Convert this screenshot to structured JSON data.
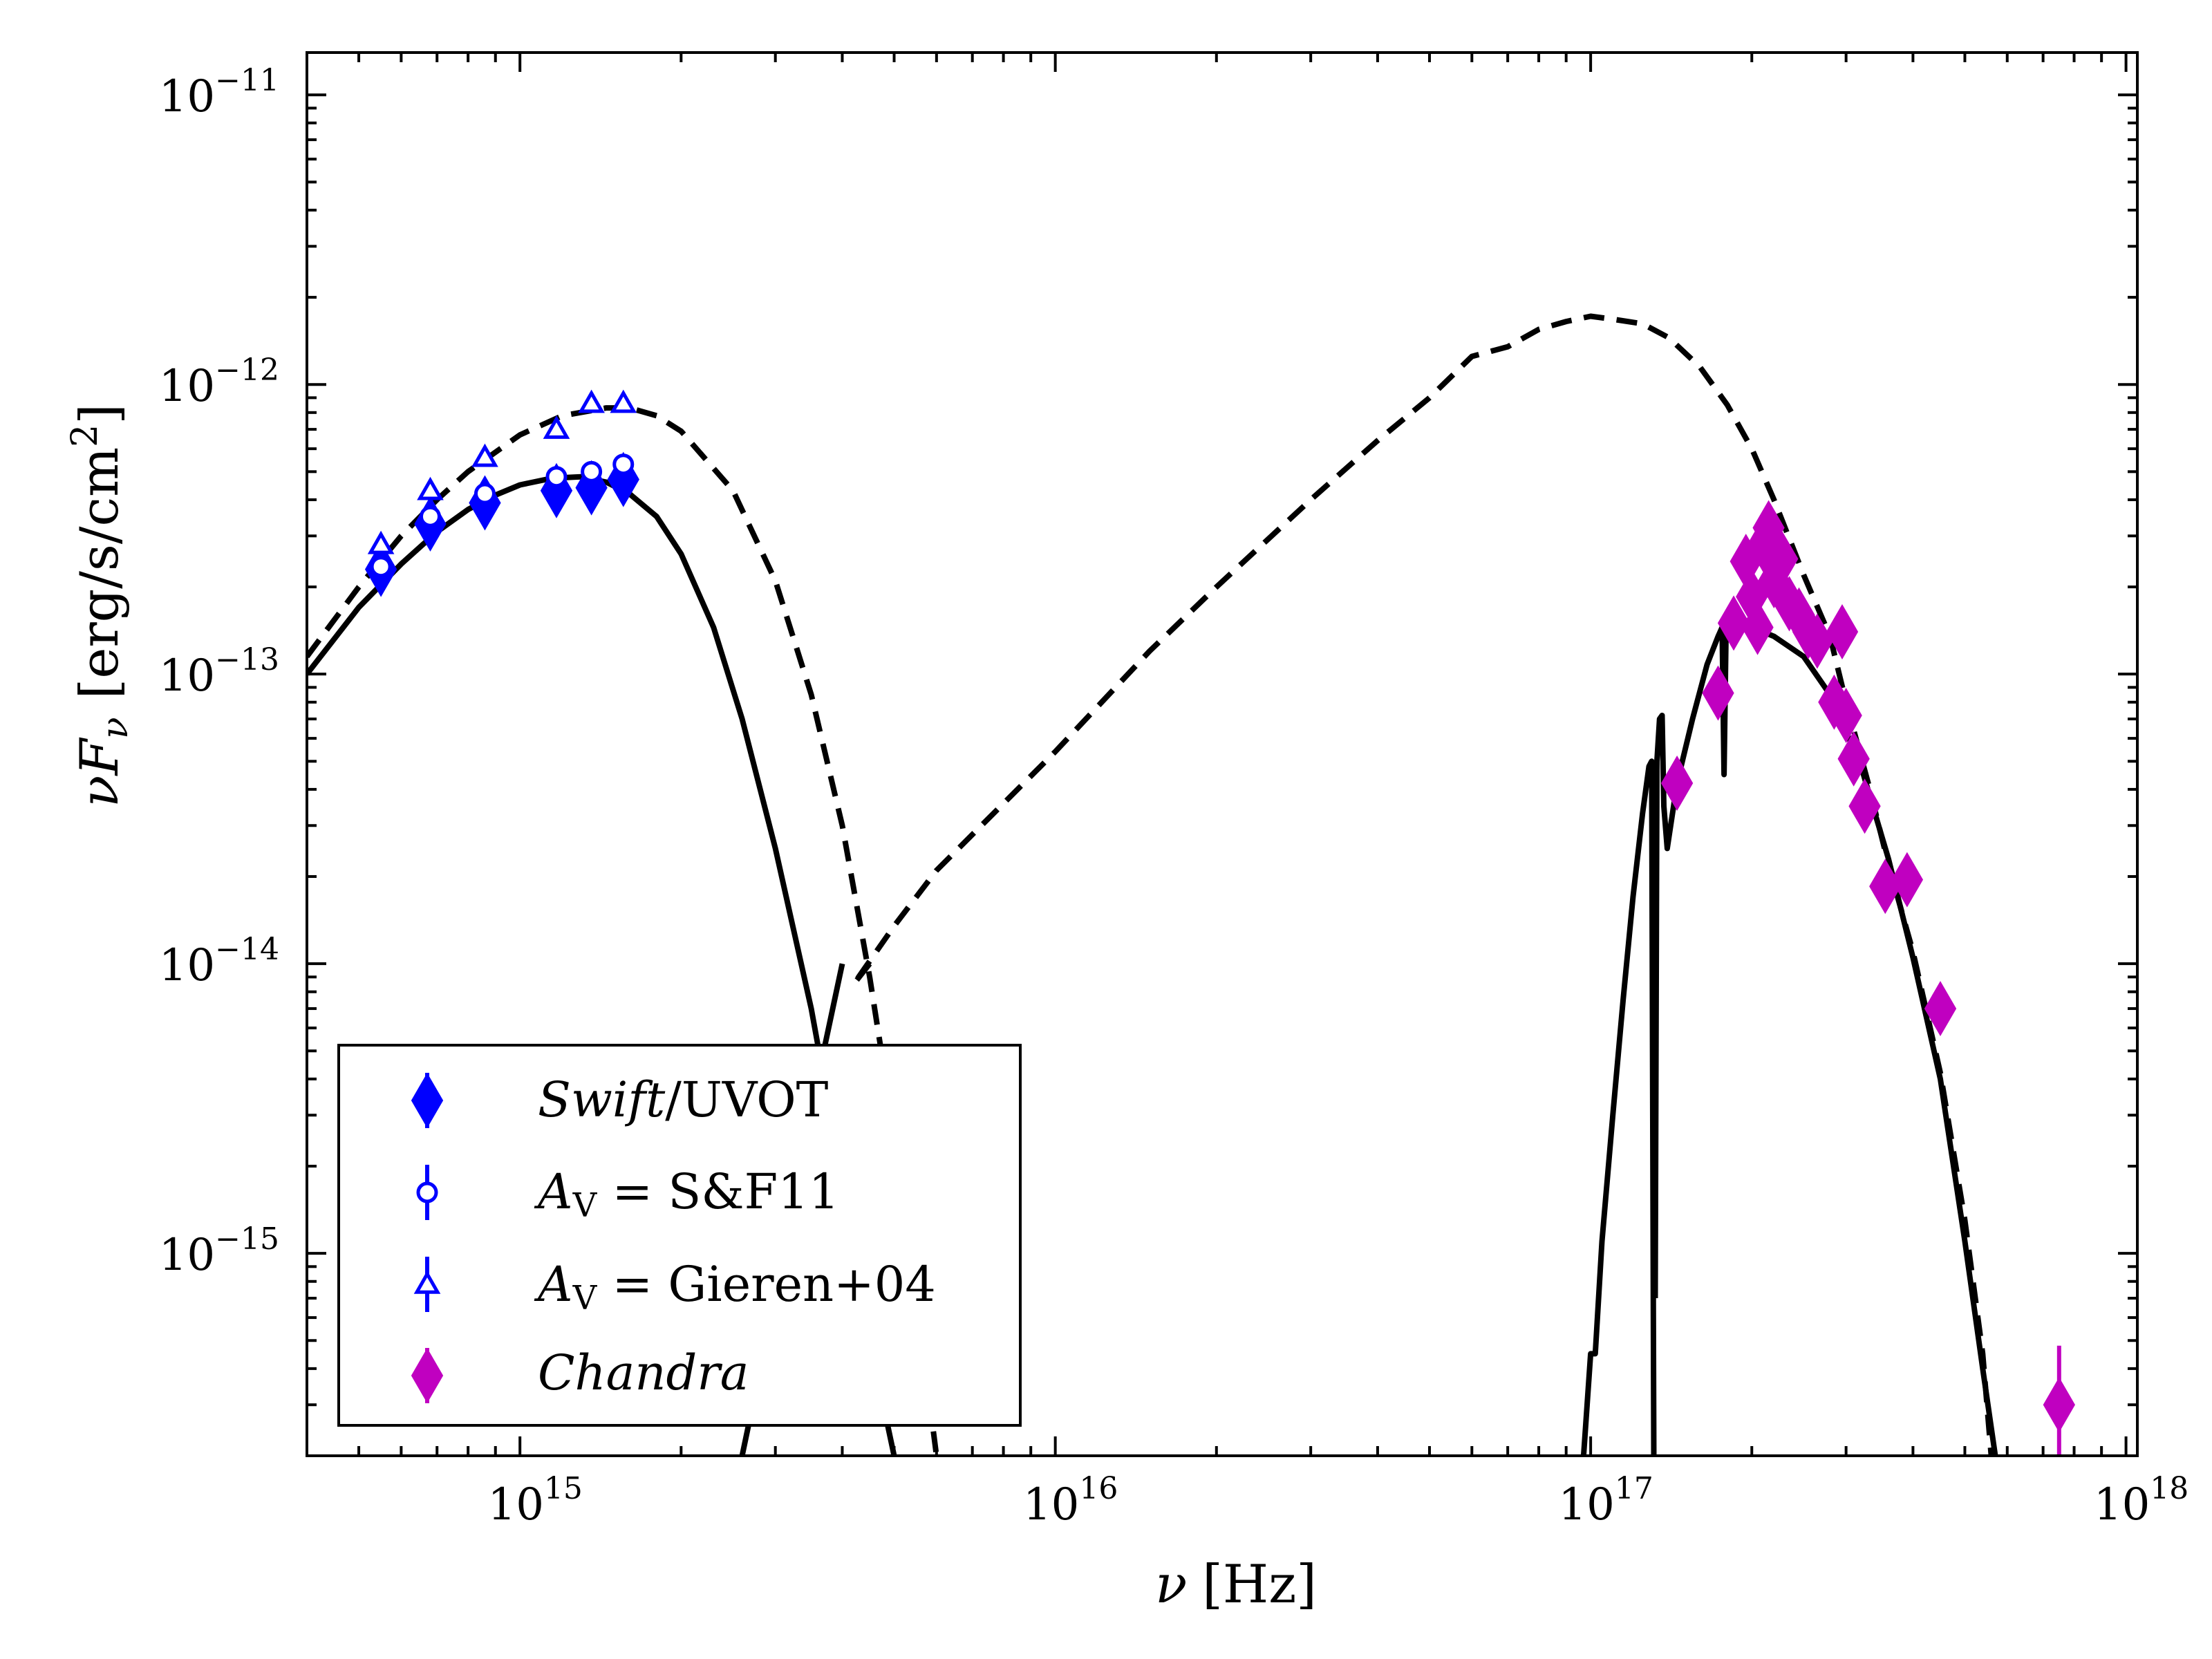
{
  "chart_data": {
    "type": "scatter",
    "title": "",
    "xscale": "log",
    "yscale": "log",
    "xlim": [
      400000000000000.0,
      1.05e+18
    ],
    "ylim": [
      2e-16,
      1.4e-11
    ],
    "xlabel_sym": "ν",
    "xlabel_unit": "[Hz]",
    "ylabel_sym": "νF",
    "ylabel_sub": "ν",
    "ylabel_unit": "[erg/s/cm",
    "ylabel_unit_sup": "2",
    "ylabel_unit_end": "]",
    "x_ticks": [
      {
        "value": 1000000000000000.0,
        "base": "10",
        "exp": "15"
      },
      {
        "value": 1e+16,
        "base": "10",
        "exp": "16"
      },
      {
        "value": 1e+17,
        "base": "10",
        "exp": "17"
      },
      {
        "value": 1e+18,
        "base": "10",
        "exp": "18"
      }
    ],
    "y_ticks": [
      {
        "value": 1e-15,
        "base": "10",
        "exp": "−15"
      },
      {
        "value": 1e-14,
        "base": "10",
        "exp": "−14"
      },
      {
        "value": 1e-13,
        "base": "10",
        "exp": "−13"
      },
      {
        "value": 1e-12,
        "base": "10",
        "exp": "−12"
      },
      {
        "value": 1e-11,
        "base": "10",
        "exp": "−11"
      }
    ],
    "legend": {
      "placement": "lower-left",
      "entries": [
        {
          "id": "swift",
          "italic": "Swift",
          "text": "/UVOT",
          "sub": "",
          "marker": "diamond",
          "color": "#0000ff",
          "filled": true
        },
        {
          "id": "sf11",
          "italic": "A",
          "sub": "V",
          "text": " = S&F11",
          "marker": "circle",
          "color": "#0000ff",
          "filled": false
        },
        {
          "id": "gieren",
          "italic": "A",
          "sub": "V",
          "text": " = Gieren+04",
          "marker": "triangle",
          "color": "#0000ff",
          "filled": false
        },
        {
          "id": "chandra",
          "italic": "Chandra",
          "text": "",
          "sub": "",
          "marker": "diamond",
          "color": "#c000c0",
          "filled": true
        }
      ]
    },
    "series": [
      {
        "name": "Swift/UVOT",
        "color": "#0000ff",
        "marker": "diamond",
        "points": [
          {
            "x": 550000000000000.0,
            "y": 2.3e-13
          },
          {
            "x": 680000000000000.0,
            "y": 3.3e-13
          },
          {
            "x": 860000000000000.0,
            "y": 3.9e-13
          },
          {
            "x": 1170000000000000.0,
            "y": 4.3e-13
          },
          {
            "x": 1360000000000000.0,
            "y": 4.4e-13
          },
          {
            "x": 1560000000000000.0,
            "y": 4.7e-13
          }
        ]
      },
      {
        "name": "A_V = S&F11",
        "color": "#0000ff",
        "marker": "circle",
        "points": [
          {
            "x": 550000000000000.0,
            "y": 2.35e-13
          },
          {
            "x": 680000000000000.0,
            "y": 3.5e-13
          },
          {
            "x": 860000000000000.0,
            "y": 4.2e-13
          },
          {
            "x": 1170000000000000.0,
            "y": 4.8e-13
          },
          {
            "x": 1360000000000000.0,
            "y": 5e-13
          },
          {
            "x": 1560000000000000.0,
            "y": 5.3e-13
          }
        ]
      },
      {
        "name": "A_V = Gieren+04",
        "color": "#0000ff",
        "marker": "triangle",
        "points": [
          {
            "x": 550000000000000.0,
            "y": 2.8e-13
          },
          {
            "x": 680000000000000.0,
            "y": 4.3e-13
          },
          {
            "x": 860000000000000.0,
            "y": 5.6e-13
          },
          {
            "x": 1170000000000000.0,
            "y": 7e-13
          },
          {
            "x": 1360000000000000.0,
            "y": 8.6e-13
          },
          {
            "x": 1560000000000000.0,
            "y": 8.6e-13
          }
        ]
      },
      {
        "name": "Chandra",
        "color": "#c000c0",
        "marker": "diamond",
        "points": [
          {
            "x": 1.45e+17,
            "y": 4.2e-14,
            "ylo": 3.8e-14,
            "yhi": 4.6e-14
          },
          {
            "x": 1.73e+17,
            "y": 8.6e-14,
            "ylo": 7.8e-14,
            "yhi": 9.6e-14
          },
          {
            "x": 1.85e+17,
            "y": 1.5e-13,
            "ylo": 1.35e-13,
            "yhi": 1.65e-13
          },
          {
            "x": 1.95e+17,
            "y": 2.45e-13,
            "ylo": 2.2e-13,
            "yhi": 2.7e-13
          },
          {
            "x": 2e+17,
            "y": 1.85e-13,
            "ylo": 1.65e-13,
            "yhi": 2.05e-13
          },
          {
            "x": 2.05e+17,
            "y": 1.45e-13,
            "ylo": 1.3e-13,
            "yhi": 1.6e-13
          },
          {
            "x": 2.1e+17,
            "y": 2.8e-13,
            "ylo": 2.55e-13,
            "yhi": 3.05e-13
          },
          {
            "x": 2.15e+17,
            "y": 3.2e-13,
            "ylo": 2.9e-13,
            "yhi": 3.5e-13
          },
          {
            "x": 2.2e+17,
            "y": 2.1e-13,
            "ylo": 1.9e-13,
            "yhi": 2.3e-13
          },
          {
            "x": 2.28e+17,
            "y": 2.5e-13,
            "ylo": 2.25e-13,
            "yhi": 2.75e-13
          },
          {
            "x": 2.35e+17,
            "y": 1.75e-13,
            "ylo": 1.55e-13,
            "yhi": 1.95e-13
          },
          {
            "x": 2.45e+17,
            "y": 1.6e-13,
            "ylo": 1.45e-13,
            "yhi": 1.75e-13
          },
          {
            "x": 2.55e+17,
            "y": 1.4e-13,
            "ylo": 1.25e-13,
            "yhi": 1.55e-13
          },
          {
            "x": 2.65e+17,
            "y": 1.3e-13,
            "ylo": 1.15e-13,
            "yhi": 1.45e-13
          },
          {
            "x": 2.85e+17,
            "y": 8e-14,
            "ylo": 7e-14,
            "yhi": 9e-14
          },
          {
            "x": 2.95e+17,
            "y": 1.4e-13,
            "ylo": 1.25e-13,
            "yhi": 1.55e-13
          },
          {
            "x": 3e+17,
            "y": 7.2e-14,
            "ylo": 6.3e-14,
            "yhi": 8.1e-14
          },
          {
            "x": 3.1e+17,
            "y": 5.1e-14,
            "ylo": 4.5e-14,
            "yhi": 5.7e-14
          },
          {
            "x": 3.25e+17,
            "y": 3.5e-14,
            "ylo": 3e-14,
            "yhi": 4e-14
          },
          {
            "x": 3.55e+17,
            "y": 1.85e-14,
            "ylo": 1.55e-14,
            "yhi": 2.15e-14
          },
          {
            "x": 3.9e+17,
            "y": 1.95e-14,
            "ylo": 1.65e-14,
            "yhi": 2.25e-14
          },
          {
            "x": 4.5e+17,
            "y": 7e-15,
            "ylo": 5.8e-15,
            "yhi": 8.2e-15
          },
          {
            "x": 7.5e+17,
            "y": 3e-16,
            "ylo": 2e-16,
            "yhi": 4.8e-16
          }
        ]
      }
    ],
    "model_curves": [
      {
        "name": "solid",
        "style": "solid",
        "color": "#000000",
        "segments": [
          [
            [
              400000000000000.0,
              1e-13
            ],
            [
              500000000000000.0,
              1.7e-13
            ],
            [
              600000000000000.0,
              2.4e-13
            ],
            [
              700000000000000.0,
              3.1e-13
            ],
            [
              800000000000000.0,
              3.7e-13
            ],
            [
              900000000000000.0,
              4.15e-13
            ],
            [
              1000000000000000.0,
              4.5e-13
            ],
            [
              1150000000000000.0,
              4.75e-13
            ],
            [
              1300000000000000.0,
              4.8e-13
            ],
            [
              1450000000000000.0,
              4.6e-13
            ],
            [
              1600000000000000.0,
              4.2e-13
            ],
            [
              1800000000000000.0,
              3.5e-13
            ],
            [
              2000000000000000.0,
              2.6e-13
            ],
            [
              2300000000000000.0,
              1.45e-13
            ],
            [
              2600000000000000.0,
              7e-14
            ],
            [
              3000000000000000.0,
              2.5e-14
            ],
            [
              3500000000000000.0,
              7e-15
            ],
            [
              4000000000000000.0,
              1.8e-15
            ],
            [
              4500000000000000.0,
              5e-16
            ],
            [
              5000000000000000.0,
              2e-16
            ]
          ],
          [
            [
              4000000000000000.0,
              1e-14
            ],
            [
              3600000000000000.0,
              4e-15
            ],
            [
              3200000000000000.0,
              1.3e-15
            ],
            [
              2850000000000000.0,
              4.5e-16
            ],
            [
              2600000000000000.0,
              2e-16
            ]
          ],
          [
            [
              9.7e+16,
              2e-16
            ],
            [
              1e+17,
              4.5e-16
            ],
            [
              1.02e+17,
              4.5e-16
            ],
            [
              1.05e+17,
              1.1e-15
            ],
            [
              1.1e+17,
              3e-15
            ],
            [
              1.15e+17,
              7.5e-15
            ],
            [
              1.2e+17,
              1.7e-14
            ],
            [
              1.25e+17,
              3.3e-14
            ],
            [
              1.285e+17,
              4.8e-14
            ],
            [
              1.3e+17,
              5e-14
            ],
            [
              1.31e+17,
              5.5e-16
            ],
            [
              1.312e+17,
              2e-16
            ]
          ],
          [
            [
              1.32e+17,
              7e-16
            ],
            [
              1.33e+17,
              5e-14
            ],
            [
              1.345e+17,
              7e-14
            ],
            [
              1.36e+17,
              7.2e-14
            ],
            [
              1.37e+17,
              3.5e-14
            ],
            [
              1.39e+17,
              2.5e-14
            ],
            [
              1.45e+17,
              4.2e-14
            ],
            [
              1.55e+17,
              7e-14
            ],
            [
              1.65e+17,
              1.08e-13
            ],
            [
              1.73e+17,
              1.35e-13
            ],
            [
              1.76e+17,
              1.45e-13
            ],
            [
              1.775e+17,
              4.5e-14
            ],
            [
              1.79e+17,
              1.35e-13
            ],
            [
              1.85e+17,
              1.5e-13
            ],
            [
              2e+17,
              1.45e-13
            ],
            [
              2.2e+17,
              1.35e-13
            ],
            [
              2.5e+17,
              1.15e-13
            ],
            [
              2.8e+17,
              8.5e-14
            ],
            [
              3.2e+17,
              4.8e-14
            ],
            [
              3.6e+17,
              2.3e-14
            ],
            [
              4e+17,
              1.05e-14
            ],
            [
              4.5e+17,
              4e-15
            ],
            [
              5e+17,
              1.1e-15
            ],
            [
              5.4e+17,
              4e-16
            ],
            [
              5.7e+17,
              2e-16
            ]
          ]
        ]
      },
      {
        "name": "dashed",
        "style": "dashed",
        "color": "#000000",
        "segments": [
          [
            [
              400000000000000.0,
              1.15e-13
            ],
            [
              500000000000000.0,
              2e-13
            ],
            [
              600000000000000.0,
              3e-13
            ],
            [
              700000000000000.0,
              4e-13
            ],
            [
              800000000000000.0,
              5e-13
            ],
            [
              1000000000000000.0,
              6.7e-13
            ],
            [
              1200000000000000.0,
              7.8e-13
            ],
            [
              1450000000000000.0,
              8.3e-13
            ],
            [
              1600000000000000.0,
              8.3e-13
            ],
            [
              1800000000000000.0,
              7.8e-13
            ],
            [
              2000000000000000.0,
              6.9e-13
            ],
            [
              2500000000000000.0,
              4.3e-13
            ],
            [
              3000000000000000.0,
              2.1e-13
            ],
            [
              3500000000000000.0,
              8.5e-14
            ],
            [
              4000000000000000.0,
              3e-14
            ],
            [
              4500000000000000.0,
              9e-15
            ],
            [
              5000000000000000.0,
              2.6e-15
            ],
            [
              5500000000000000.0,
              7e-16
            ],
            [
              6000000000000000.0,
              2e-16
            ]
          ],
          [
            [
              4500000000000000.0,
              1e-14
            ],
            [
              4200000000000000.0,
              8.5e-15
            ],
            [
              5000000000000000.0,
              1.35e-14
            ],
            [
              6000000000000000.0,
              2.1e-14
            ],
            [
              1e+16,
              5.4e-14
            ],
            [
              1.5e+16,
              1.2e-13
            ],
            [
              2e+16,
              2e-13
            ],
            [
              3e+16,
              4e-13
            ],
            [
              4e+16,
              6.4e-13
            ],
            [
              5e+16,
              9e-13
            ],
            [
              6e+16,
              1.25e-12
            ],
            [
              7e+16,
              1.35e-12
            ],
            [
              8e+16,
              1.55e-12
            ],
            [
              9e+16,
              1.65e-12
            ],
            [
              1e+17,
              1.72e-12
            ],
            [
              1.1e+17,
              1.68e-12
            ],
            [
              1.25e+17,
              1.62e-12
            ],
            [
              1.4e+17,
              1.45e-12
            ],
            [
              1.6e+17,
              1.15e-12
            ],
            [
              1.8e+17,
              8.5e-13
            ],
            [
              2e+17,
              6e-13
            ],
            [
              2.2e+17,
              4e-13
            ],
            [
              2.5e+17,
              2.2e-13
            ],
            [
              2.8e+17,
              1.35e-13
            ],
            [
              3e+17,
              8e-14
            ],
            [
              3.3e+17,
              4.2e-14
            ],
            [
              3.6e+17,
              2.2e-14
            ],
            [
              4e+17,
              1.1e-14
            ],
            [
              4.5e+17,
              4.2e-15
            ],
            [
              5e+17,
              1.3e-15
            ],
            [
              5.4e+17,
              4.5e-16
            ],
            [
              5.6e+17,
              2e-16
            ]
          ]
        ]
      }
    ]
  }
}
